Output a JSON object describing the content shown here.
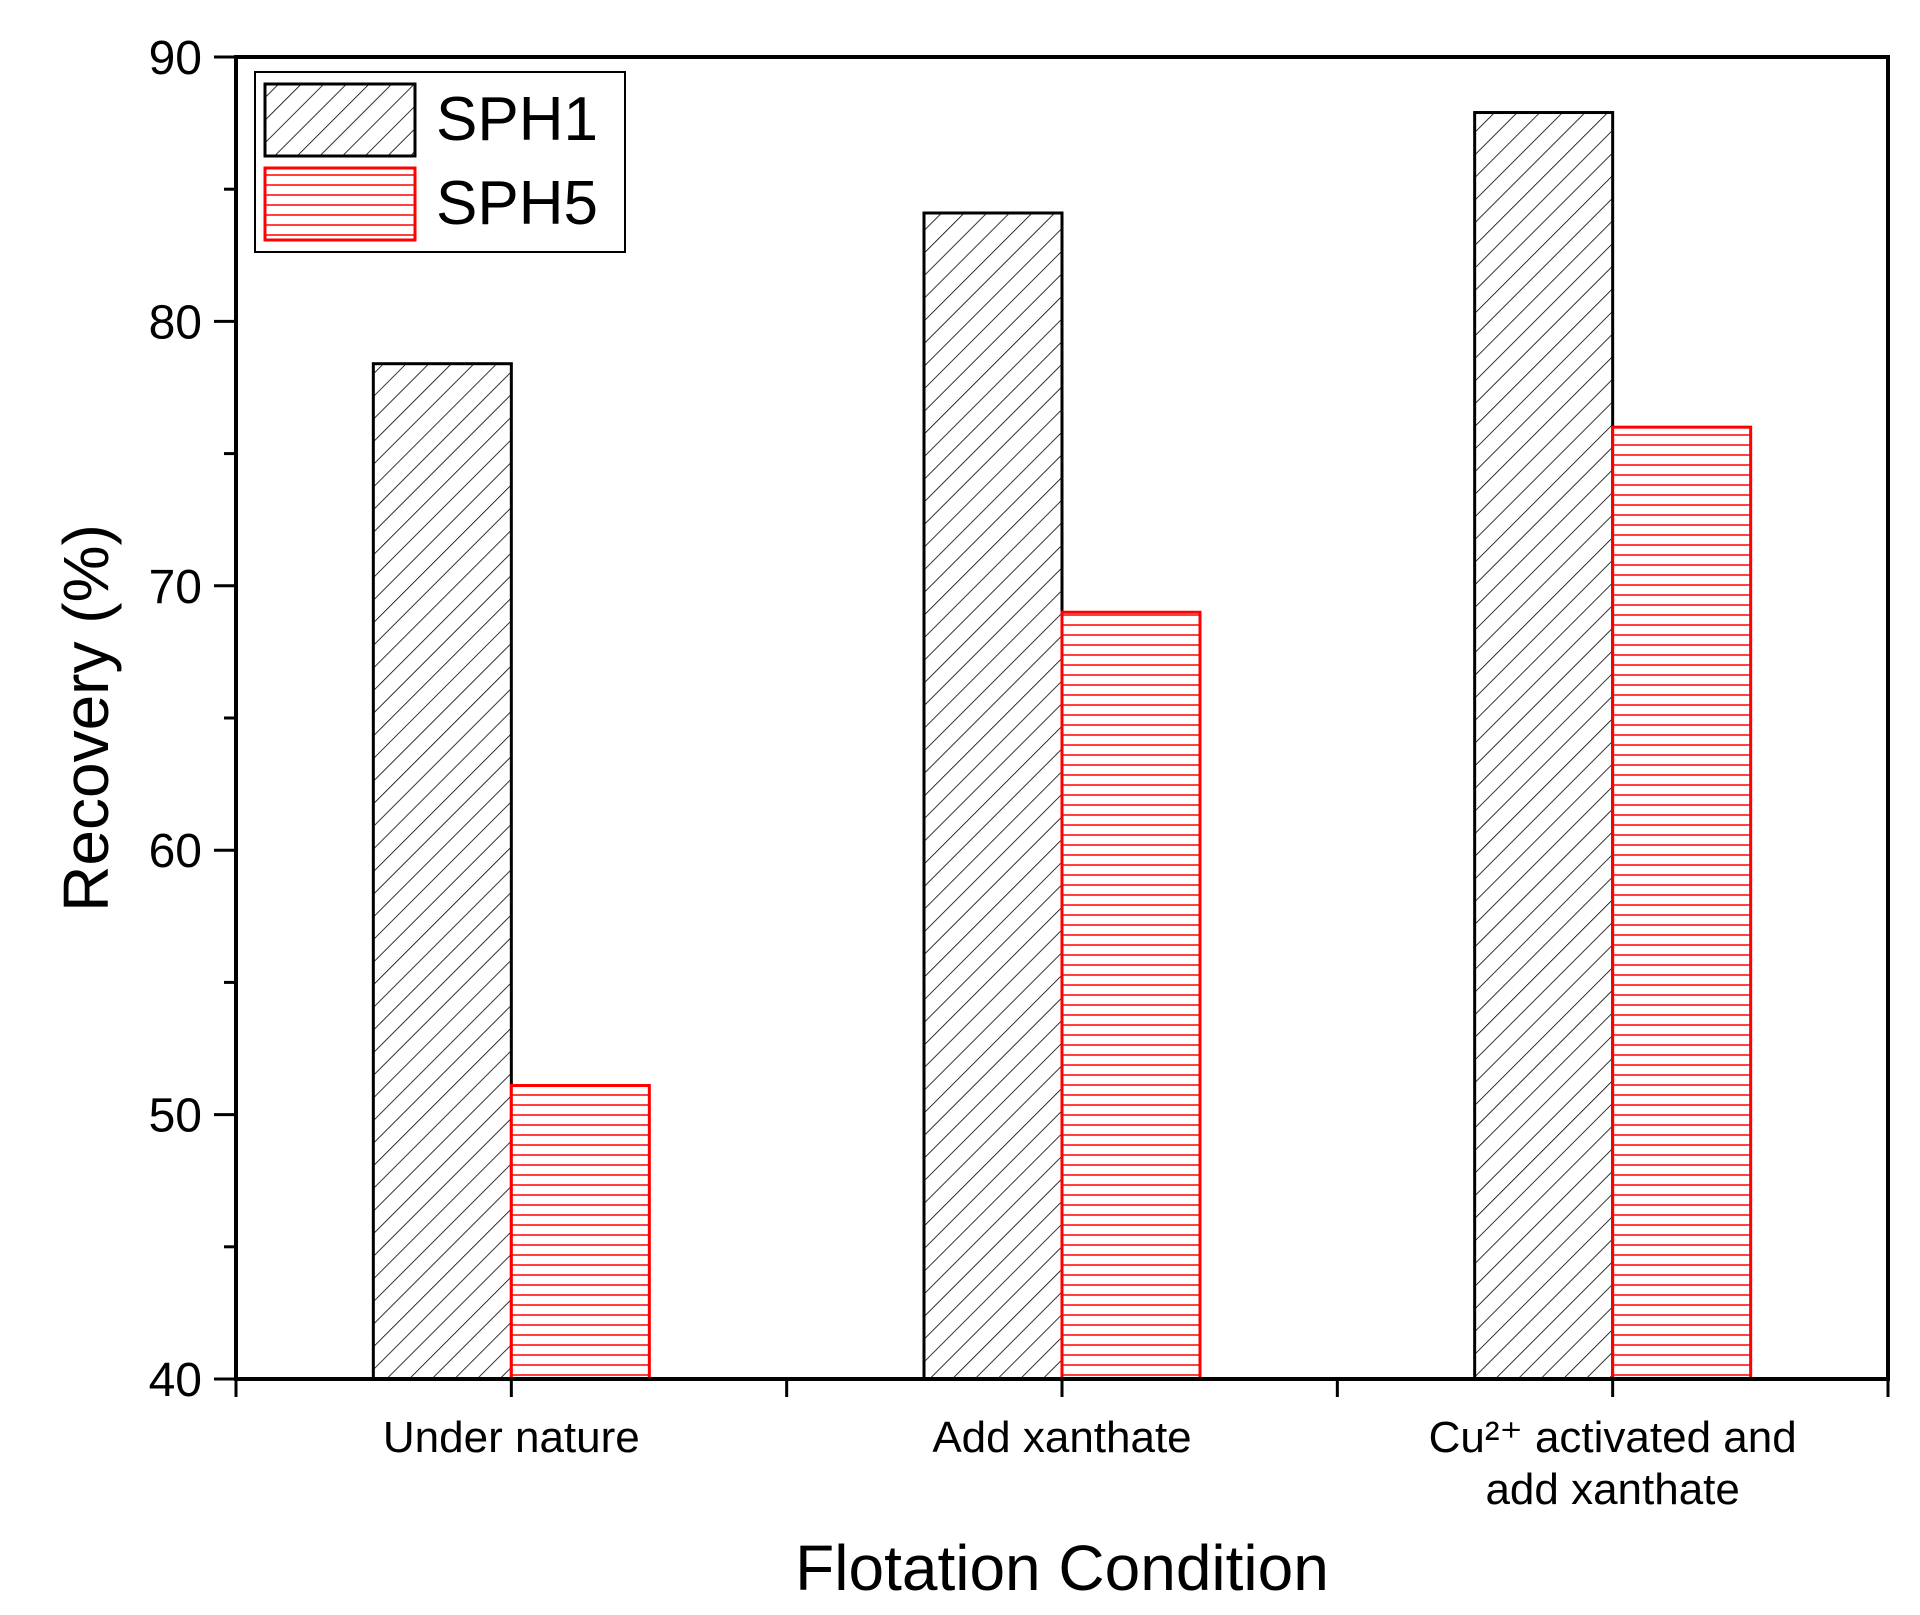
{
  "chart_data": {
    "type": "bar",
    "xlabel": "Flotation Condition",
    "ylabel": "Recovery (%)",
    "ylim": [
      40,
      90
    ],
    "yticks": [
      40,
      50,
      60,
      70,
      80,
      90
    ],
    "categories": [
      {
        "lines": [
          "Under nature"
        ]
      },
      {
        "lines": [
          "Add xanthate"
        ]
      },
      {
        "lines": [
          "Cu²⁺ activated and",
          "add xanthate"
        ]
      }
    ],
    "series": [
      {
        "name": "SPH1",
        "values": [
          78.4,
          84.1,
          87.9
        ],
        "color": "#000000",
        "pattern": "diagonal-hatch"
      },
      {
        "name": "SPH5",
        "values": [
          51.1,
          69.0,
          76.0
        ],
        "color": "#ff0000",
        "pattern": "horizontal-lines"
      }
    ],
    "legend": "top-left"
  }
}
